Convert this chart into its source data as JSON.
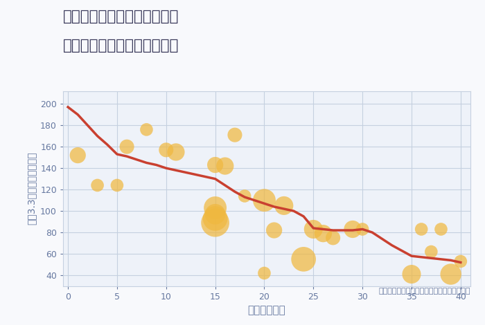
{
  "title_line1": "神奈川県横浜市緑区西八朔町",
  "title_line2": "築年数別中古マンション価格",
  "xlabel": "築年数（年）",
  "ylabel": "坪（3.3㎡）単価（万円）",
  "annotation": "円の大きさは、取引のあった物件面積を示す",
  "bg_color": "#f8f9fc",
  "plot_bg_color": "#eef2f9",
  "grid_color": "#c5d0e0",
  "title_color": "#333355",
  "axis_color": "#6678a0",
  "scatter_color": "#f0b840",
  "scatter_alpha": 0.72,
  "line_color": "#c94030",
  "line_width": 2.5,
  "xlim": [
    -0.5,
    41
  ],
  "ylim": [
    30,
    212
  ],
  "xticks": [
    0,
    5,
    10,
    15,
    20,
    25,
    30,
    35,
    40
  ],
  "yticks": [
    40,
    60,
    80,
    100,
    120,
    140,
    160,
    180,
    200
  ],
  "scatter_x": [
    1,
    3,
    5,
    6,
    8,
    10,
    11,
    15,
    15,
    15,
    15,
    15,
    16,
    17,
    18,
    20,
    20,
    21,
    22,
    24,
    25,
    26,
    27,
    29,
    30,
    35,
    36,
    37,
    38,
    39,
    40
  ],
  "scatter_y": [
    152,
    124,
    124,
    160,
    176,
    157,
    155,
    143,
    103,
    97,
    93,
    89,
    142,
    171,
    114,
    110,
    42,
    82,
    105,
    55,
    83,
    79,
    75,
    83,
    83,
    41,
    83,
    62,
    83,
    41,
    53
  ],
  "scatter_s": [
    280,
    180,
    180,
    230,
    180,
    230,
    330,
    280,
    560,
    460,
    660,
    860,
    330,
    230,
    180,
    560,
    180,
    280,
    380,
    660,
    380,
    330,
    230,
    330,
    180,
    380,
    180,
    180,
    180,
    480,
    180
  ],
  "line_x": [
    0,
    1,
    2,
    3,
    4,
    5,
    6,
    7,
    8,
    9,
    10,
    11,
    12,
    13,
    14,
    15,
    16,
    17,
    18,
    19,
    20,
    21,
    22,
    23,
    24,
    25,
    26,
    27,
    28,
    29,
    30,
    31,
    32,
    33,
    34,
    35,
    36,
    37,
    38,
    39,
    40
  ],
  "line_y": [
    197,
    190,
    180,
    170,
    162,
    153,
    151,
    148,
    145,
    143,
    140,
    138,
    136,
    134,
    132,
    130,
    124,
    118,
    113,
    110,
    107,
    104,
    102,
    100,
    95,
    84,
    83,
    82,
    82,
    82,
    83,
    80,
    74,
    68,
    63,
    58,
    57,
    56,
    55,
    54,
    52
  ]
}
